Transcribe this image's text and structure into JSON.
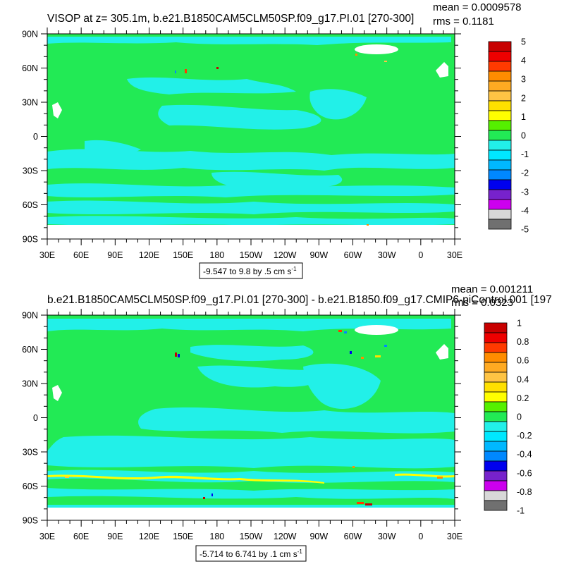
{
  "chart_data": [
    {
      "type": "heatmap",
      "title": "VISOP at z= 305.1m, b.e21.B1850CAM5CLM50SP.f09_g17.PI.01 [270-300]",
      "stats": {
        "mean": "mean = 0.0009578",
        "rms": "rms = 0.1181"
      },
      "range_label": "-9.547 to 9.8 by .5 cm s",
      "range_exponent": "-1",
      "x_ticks": [
        "30E",
        "60E",
        "90E",
        "120E",
        "150E",
        "180",
        "150W",
        "120W",
        "90W",
        "60W",
        "30W",
        "0",
        "30E"
      ],
      "y_ticks": [
        "90N",
        "60N",
        "30N",
        "0",
        "30S",
        "60S",
        "90S"
      ],
      "colorbar_labels": [
        "5",
        "4",
        "3",
        "2",
        "1",
        "0",
        "-1",
        "-2",
        "-3",
        "-4",
        "-5"
      ],
      "field_colors": {
        "near_zero": "#22ea55",
        "slightly_negative": "#22f0e8"
      }
    },
    {
      "type": "heatmap",
      "title": "b.e21.B1850CAM5CLM50SP.f09_g17.PI.01 [270-300] - b.e21.B1850.f09_g17.CMIP6-piControl.001 [197",
      "stats": {
        "mean": "mean = 0.001211",
        "rms": "rms = 0.0323"
      },
      "range_label": "-5.714 to 6.741 by .1 cm s",
      "range_exponent": "-1",
      "x_ticks": [
        "30E",
        "60E",
        "90E",
        "120E",
        "150E",
        "180",
        "150W",
        "120W",
        "90W",
        "60W",
        "30W",
        "0",
        "30E"
      ],
      "y_ticks": [
        "90N",
        "60N",
        "30N",
        "0",
        "30S",
        "60S",
        "90S"
      ],
      "colorbar_labels": [
        "1",
        "0.8",
        "0.6",
        "0.4",
        "0.2",
        "0",
        "-0.2",
        "-0.4",
        "-0.6",
        "-0.8",
        "-1"
      ],
      "field_colors": {
        "near_zero": "#22ea55",
        "slightly_negative": "#22f0e8"
      }
    }
  ],
  "colorbar_palette": [
    "#c80000",
    "#ee0000",
    "#ff3a00",
    "#ff8c00",
    "#ffaa22",
    "#ffc444",
    "#ffe000",
    "#ffff00",
    "#55f000",
    "#22ea55",
    "#22f0e8",
    "#00e8ff",
    "#00b8ff",
    "#0088ff",
    "#0000ee",
    "#7722cc",
    "#cc00ee",
    "#d8d8d8",
    "#707070"
  ]
}
